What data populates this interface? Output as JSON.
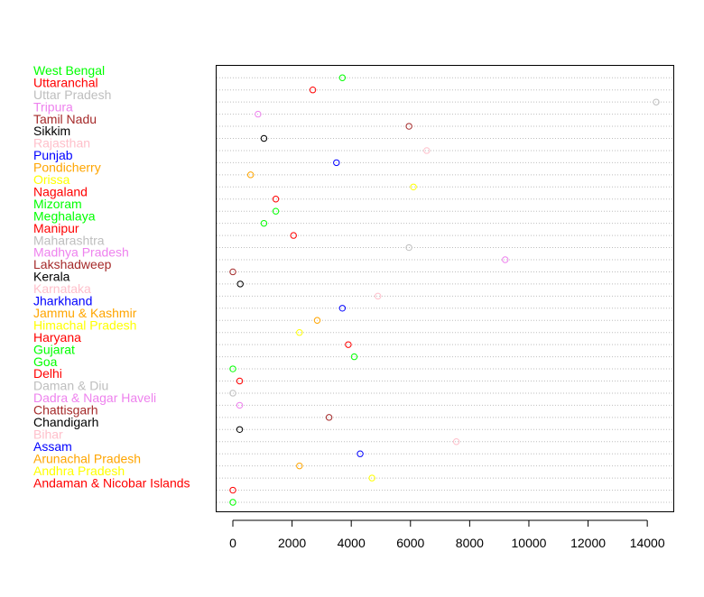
{
  "chart_data": {
    "type": "dotchart",
    "title": "",
    "xlabel": "",
    "ylabel": "",
    "xlim": [
      -500,
      14600
    ],
    "x_ticks": [
      0,
      2000,
      4000,
      6000,
      8000,
      10000,
      12000,
      14000
    ],
    "x_tick_labels": [
      "0",
      "2000",
      "4000",
      "6000",
      "8000",
      "10000",
      "12000",
      "14000"
    ],
    "grid": "horizontal dotted lines per category",
    "categories": [
      {
        "label": "",
        "value": 0,
        "color": "#00ff00"
      },
      {
        "label": "Andaman & Nicobar Islands",
        "value": 0,
        "color": "#ff0000"
      },
      {
        "label": "Andhra Pradesh",
        "value": 4700,
        "color": "#ffff00"
      },
      {
        "label": "Arunachal Pradesh",
        "value": 2250,
        "color": "#ffa500"
      },
      {
        "label": "Assam",
        "value": 4300,
        "color": "#0000ff"
      },
      {
        "label": "Bihar",
        "value": 7550,
        "color": "#ffc0cb"
      },
      {
        "label": "Chandigarh",
        "value": 230,
        "color": "#000000"
      },
      {
        "label": "Chattisgarh",
        "value": 3250,
        "color": "#a52a2a"
      },
      {
        "label": "Dadra & Nagar Haveli",
        "value": 230,
        "color": "#ee82ee"
      },
      {
        "label": "Daman & Diu",
        "value": 0,
        "color": "#bebebe"
      },
      {
        "label": "Delhi",
        "value": 230,
        "color": "#ff0000"
      },
      {
        "label": "Goa",
        "value": 0,
        "color": "#00ff00"
      },
      {
        "label": "Gujarat",
        "value": 4100,
        "color": "#00ff00"
      },
      {
        "label": "Haryana",
        "value": 3900,
        "color": "#ff0000"
      },
      {
        "label": "Himachal Pradesh",
        "value": 2250,
        "color": "#ffff00"
      },
      {
        "label": "Jammu & Kashmir",
        "value": 2850,
        "color": "#ffa500"
      },
      {
        "label": "Jharkhand",
        "value": 3700,
        "color": "#0000ff"
      },
      {
        "label": "Karnataka",
        "value": 4900,
        "color": "#ffc0cb"
      },
      {
        "label": "Kerala",
        "value": 250,
        "color": "#000000"
      },
      {
        "label": "Lakshadweep",
        "value": 0,
        "color": "#a52a2a"
      },
      {
        "label": "Madhya Pradesh",
        "value": 9200,
        "color": "#ee82ee"
      },
      {
        "label": "Maharashtra",
        "value": 5950,
        "color": "#bebebe"
      },
      {
        "label": "Manipur",
        "value": 2050,
        "color": "#ff0000"
      },
      {
        "label": "Meghalaya",
        "value": 1050,
        "color": "#00ff00"
      },
      {
        "label": "Mizoram",
        "value": 1450,
        "color": "#00ff00"
      },
      {
        "label": "Nagaland",
        "value": 1450,
        "color": "#ff0000"
      },
      {
        "label": "Orissa",
        "value": 6100,
        "color": "#ffff00"
      },
      {
        "label": "Pondicherry",
        "value": 600,
        "color": "#ffa500"
      },
      {
        "label": "Punjab",
        "value": 3500,
        "color": "#0000ff"
      },
      {
        "label": "Rajasthan",
        "value": 6550,
        "color": "#ffc0cb"
      },
      {
        "label": "Sikkim",
        "value": 1050,
        "color": "#000000"
      },
      {
        "label": "Tamil Nadu",
        "value": 5950,
        "color": "#a52a2a"
      },
      {
        "label": "Tripura",
        "value": 850,
        "color": "#ee82ee"
      },
      {
        "label": "Uttar Pradesh",
        "value": 14300,
        "color": "#bebebe"
      },
      {
        "label": "Uttaranchal",
        "value": 2700,
        "color": "#ff0000"
      },
      {
        "label": "West Bengal",
        "value": 3700,
        "color": "#00ff00"
      }
    ]
  }
}
